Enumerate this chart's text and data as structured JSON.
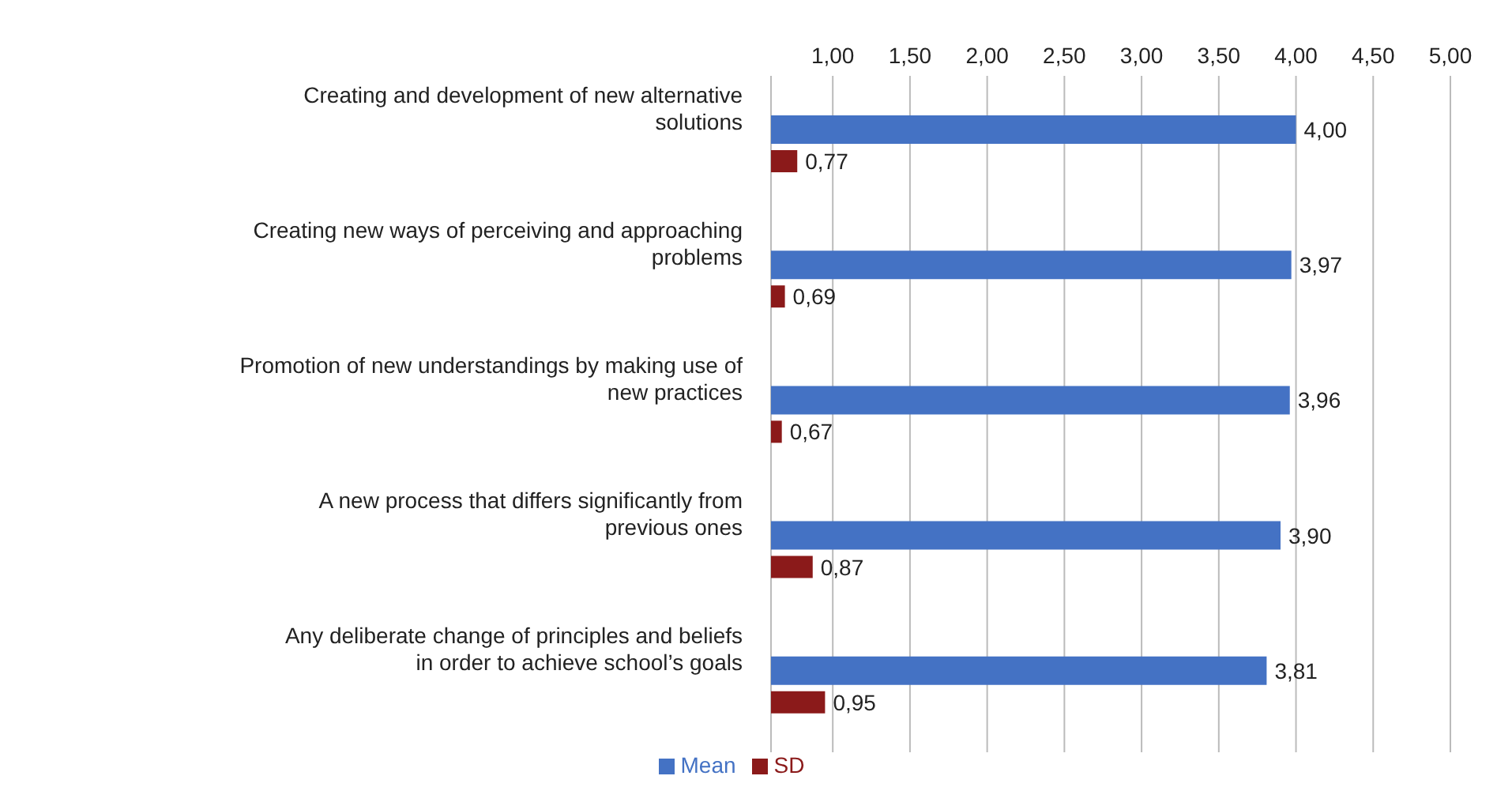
{
  "chart_data": {
    "type": "bar",
    "orientation": "horizontal",
    "categories": [
      "Creating and development of new alternative solutions",
      "Creating new ways of perceiving and approaching problems",
      "Promotion of new understandings by making use of new practices",
      "A new process that differs significantly from previous ones",
      "Any deliberate change of principles and beliefs in order to achieve school’s goals"
    ],
    "series": [
      {
        "name": "Mean",
        "color": "#4472c4",
        "values": [
          4.0,
          3.97,
          3.96,
          3.9,
          3.81
        ],
        "value_labels": [
          "4,00",
          "3,97",
          "3,96",
          "3,90",
          "3,81"
        ]
      },
      {
        "name": "SD",
        "color": "#8b1a1a",
        "values": [
          0.77,
          0.69,
          0.67,
          0.87,
          0.95
        ],
        "value_labels": [
          "0,77",
          "0,69",
          "0,67",
          "0,87",
          "0,95"
        ]
      }
    ],
    "xlim": [
      0.6,
      5
    ],
    "xticks": [
      {
        "value": 1,
        "label": "1,00"
      },
      {
        "value": 1.5,
        "label": "1,50"
      },
      {
        "value": 2,
        "label": "2,00"
      },
      {
        "value": 2.5,
        "label": "2,50"
      },
      {
        "value": 3,
        "label": "3,00"
      },
      {
        "value": 3.5,
        "label": "3,50"
      },
      {
        "value": 4,
        "label": "4,00"
      },
      {
        "value": 4.5,
        "label": "4,50"
      },
      {
        "value": 5,
        "label": "5,00"
      }
    ],
    "grid": "x",
    "legend": "bottom"
  }
}
